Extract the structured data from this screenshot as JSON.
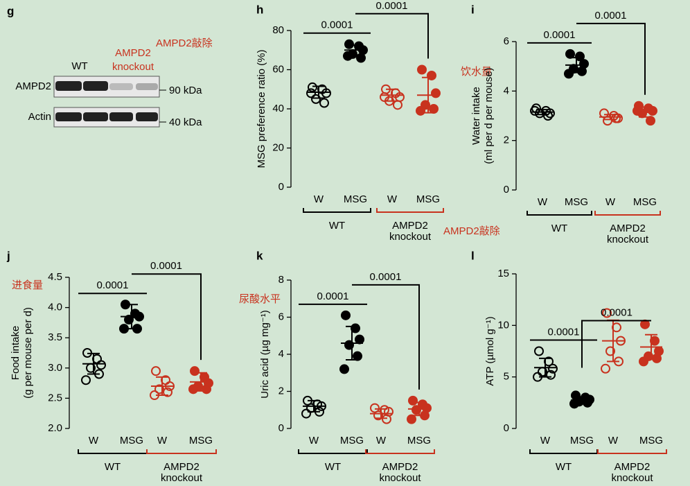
{
  "blot": {
    "panel": "g",
    "columns": [
      "WT",
      "AMPD2",
      "knockout"
    ],
    "rows": [
      "AMPD2",
      "Actin"
    ],
    "sizes": [
      "90 kDa",
      "40 kDa"
    ],
    "annotation": "AMPD2敲除"
  },
  "chart_data": [
    {
      "type": "dot",
      "panel": "h",
      "ylabel": [
        "MSG preference ratio (%)"
      ],
      "ylim": [
        0,
        80
      ],
      "yticks": [
        0,
        20,
        40,
        60,
        80
      ],
      "categories": [
        "W",
        "MSG",
        "W",
        "MSG"
      ],
      "filled": [
        false,
        true,
        false,
        true
      ],
      "groups": [
        {
          "label": [
            "WT"
          ],
          "color": "#000000",
          "members": [
            0,
            1
          ]
        },
        {
          "label": [
            "AMPD2",
            "knockout"
          ],
          "color": "#c8321e",
          "members": [
            2,
            3
          ]
        }
      ],
      "points": [
        [
          51,
          50,
          48,
          45,
          43,
          48
        ],
        [
          73,
          72,
          70,
          68,
          66,
          67
        ],
        [
          50,
          48,
          46,
          44,
          42,
          46
        ],
        [
          60,
          57,
          48,
          42,
          40,
          39
        ]
      ],
      "mean": [
        48.5,
        70,
        47,
        47
      ],
      "sd": [
        3,
        2.5,
        3,
        9
      ],
      "comparisons": [
        {
          "pair": [
            0,
            1
          ],
          "p": 0.0001
        },
        {
          "pair": [
            1,
            3
          ],
          "p": 0.0001
        }
      ],
      "annotation": "AMPD2敲除"
    },
    {
      "type": "dot",
      "panel": "i",
      "ylabel": [
        "Water intake",
        "(ml per d per mouse)"
      ],
      "ylim": [
        0,
        6
      ],
      "yticks": [
        0,
        2,
        4,
        6
      ],
      "categories": [
        "W",
        "MSG",
        "W",
        "MSG"
      ],
      "filled": [
        false,
        true,
        false,
        true
      ],
      "groups": [
        {
          "label": [
            "WT"
          ],
          "color": "#000000",
          "members": [
            0,
            1
          ]
        },
        {
          "label": [
            "AMPD2",
            "knockout"
          ],
          "color": "#c8321e",
          "members": [
            2,
            3
          ]
        }
      ],
      "points": [
        [
          3.3,
          3.2,
          3.1,
          3.1,
          3.0,
          3.2
        ],
        [
          5.5,
          5.4,
          5.1,
          4.9,
          4.8,
          4.7
        ],
        [
          3.1,
          3.0,
          2.9,
          2.8,
          2.9
        ],
        [
          3.4,
          3.3,
          3.2,
          3.1,
          2.8,
          3.2
        ]
      ],
      "mean": [
        3.15,
        5.05,
        2.95,
        3.15
      ],
      "sd": [
        0.1,
        0.3,
        0.1,
        0.2
      ],
      "comparisons": [
        {
          "pair": [
            0,
            1
          ],
          "p": 0.0001
        },
        {
          "pair": [
            1,
            3
          ],
          "p": 0.0001
        }
      ],
      "annotation": "饮水量"
    },
    {
      "type": "dot",
      "panel": "j",
      "ylabel": [
        "Food intake",
        "(g per mouse per d)"
      ],
      "ylim": [
        2,
        4.5
      ],
      "yticks": [
        {
          "value": 2,
          "label": "2.0"
        },
        2.5,
        {
          "value": 3,
          "label": "3.0"
        },
        3.5,
        {
          "value": 4,
          "label": "4.0"
        },
        4.5
      ],
      "categories": [
        "W",
        "MSG",
        "W",
        "MSG"
      ],
      "filled": [
        false,
        true,
        false,
        true
      ],
      "groups": [
        {
          "label": [
            "WT"
          ],
          "color": "#000000",
          "members": [
            0,
            1
          ]
        },
        {
          "label": [
            "AMPD2",
            "knockout"
          ],
          "color": "#c8321e",
          "members": [
            2,
            3
          ]
        }
      ],
      "points": [
        [
          3.25,
          3.15,
          3.05,
          3.0,
          2.9,
          2.8
        ],
        [
          4.05,
          3.9,
          3.85,
          3.8,
          3.65,
          3.65
        ],
        [
          2.95,
          2.8,
          2.7,
          2.65,
          2.6,
          2.55
        ],
        [
          2.95,
          2.85,
          2.75,
          2.7,
          2.65,
          2.65
        ]
      ],
      "mean": [
        3.07,
        3.85,
        2.7,
        2.77
      ],
      "sd": [
        0.17,
        0.2,
        0.15,
        0.15
      ],
      "comparisons": [
        {
          "pair": [
            0,
            1
          ],
          "p": 0.0001
        },
        {
          "pair": [
            1,
            3
          ],
          "p": 0.0001
        }
      ],
      "annotation": "进食量"
    },
    {
      "type": "dot",
      "panel": "k",
      "ylabel": [
        "Uric acid (µg mg⁻¹)"
      ],
      "ylim": [
        0,
        8
      ],
      "yticks": [
        0,
        2,
        4,
        6,
        8
      ],
      "categories": [
        "W",
        "MSG",
        "W",
        "MSG"
      ],
      "filled": [
        false,
        true,
        false,
        true
      ],
      "groups": [
        {
          "label": [
            "WT"
          ],
          "color": "#000000",
          "members": [
            0,
            1
          ]
        },
        {
          "label": [
            "AMPD2",
            "knockout"
          ],
          "color": "#c8321e",
          "members": [
            2,
            3
          ]
        }
      ],
      "points": [
        [
          1.5,
          1.3,
          1.2,
          1.1,
          0.9,
          0.8
        ],
        [
          6.1,
          5.4,
          4.8,
          4.5,
          3.9,
          3.2
        ],
        [
          1.1,
          1.0,
          0.9,
          0.7,
          0.5
        ],
        [
          1.5,
          1.3,
          1.1,
          1.0,
          0.7,
          0.5
        ]
      ],
      "mean": [
        1.2,
        4.6,
        0.8,
        1.05
      ],
      "sd": [
        0.3,
        0.9,
        0.25,
        0.35
      ],
      "comparisons": [
        {
          "pair": [
            0,
            1
          ],
          "p": 0.0001
        },
        {
          "pair": [
            1,
            3
          ],
          "p": 0.0001
        }
      ],
      "annotation": "尿酸水平"
    },
    {
      "type": "dot",
      "panel": "l",
      "ylabel": [
        "ATP (µmol g⁻¹)"
      ],
      "ylim": [
        0,
        15
      ],
      "yticks": [
        0,
        5,
        10,
        15
      ],
      "categories": [
        "W",
        "MSG",
        "W",
        "MSG"
      ],
      "filled": [
        false,
        true,
        false,
        true
      ],
      "groups": [
        {
          "label": [
            "WT"
          ],
          "color": "#000000",
          "members": [
            0,
            1
          ]
        },
        {
          "label": [
            "AMPD2",
            "knockout"
          ],
          "color": "#c8321e",
          "members": [
            2,
            3
          ]
        }
      ],
      "points": [
        [
          7.5,
          6.5,
          5.8,
          5.5,
          5.2,
          5.0
        ],
        [
          3.2,
          3.0,
          2.8,
          2.6,
          2.5,
          2.4
        ],
        [
          11.2,
          9.8,
          8.5,
          7.5,
          6.5,
          5.8
        ],
        [
          10.1,
          8.5,
          7.5,
          7.0,
          6.8,
          6.5
        ]
      ],
      "mean": [
        5.9,
        2.75,
        8.5,
        7.9
      ],
      "sd": [
        0.9,
        0.3,
        2,
        1.2
      ],
      "comparisons": [
        {
          "pair": [
            0,
            1
          ],
          "p": 0.0001
        },
        {
          "pair": [
            1,
            3
          ],
          "p": 0.0001
        }
      ]
    }
  ]
}
